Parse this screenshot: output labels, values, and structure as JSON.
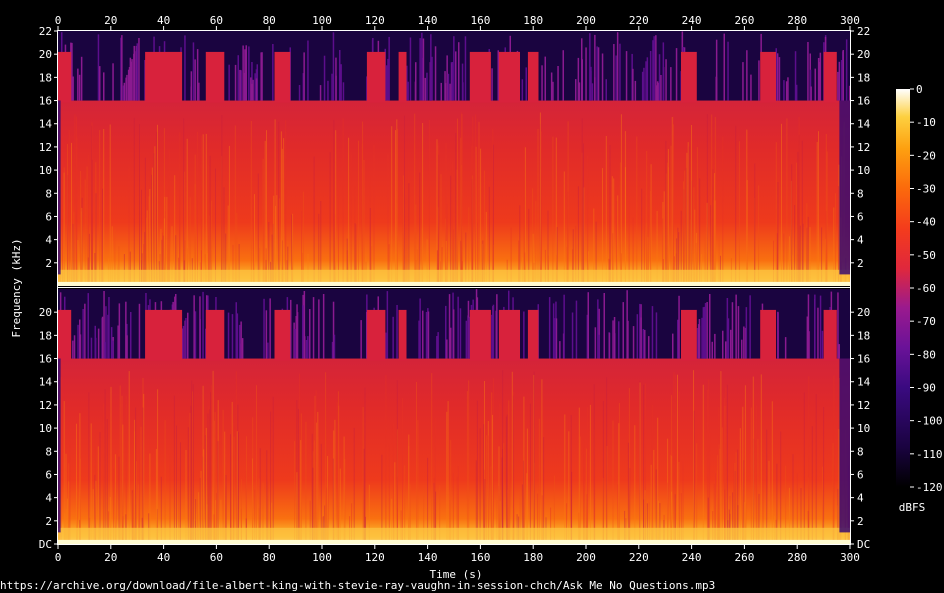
{
  "chart_data": {
    "type": "heatmap",
    "subtype": "spectrogram",
    "channels": 2,
    "xlabel": "Time (s)",
    "ylabel": "Frequency (kHz)",
    "colorbar_label": "dBFS",
    "source_url": "https://archive.org/download/file-albert-king-with-stevie-ray-vaughn-in-session-chch/Ask Me No Questions.mp3",
    "x_ticks": [
      0,
      20,
      40,
      60,
      80,
      100,
      120,
      140,
      160,
      180,
      200,
      220,
      240,
      260,
      280,
      300
    ],
    "xlim": [
      0,
      300
    ],
    "y_ticks_top_panel": [
      "2",
      "4",
      "6",
      "8",
      "10",
      "12",
      "14",
      "16",
      "18",
      "20",
      "22"
    ],
    "y_ticks_bottom_panel": [
      "DC",
      "2",
      "4",
      "6",
      "8",
      "10",
      "12",
      "14",
      "16",
      "18",
      "20"
    ],
    "ylim_khz": [
      0,
      22
    ],
    "colorbar_ticks": [
      "0",
      "-10",
      "-20",
      "-30",
      "-40",
      "-50",
      "-60",
      "-70",
      "-80",
      "-90",
      "-100",
      "-110",
      "-120"
    ],
    "colorbar_range_dbfs": [
      -120,
      0
    ],
    "colormap": [
      "#000000",
      "#1a0340",
      "#3a0a80",
      "#6a1298",
      "#9a1a8e",
      "#c0206a",
      "#e0283c",
      "#f43c1c",
      "#fb6a0c",
      "#fda010",
      "#fdd040",
      "#fff4a0",
      "#ffffff"
    ],
    "lowpass_cutoff_khz": 16,
    "loud_sections_full_band_s": [
      [
        0,
        5
      ],
      [
        33,
        47
      ],
      [
        56,
        63
      ],
      [
        82,
        88
      ],
      [
        117,
        124
      ],
      [
        129,
        132
      ],
      [
        156,
        164
      ],
      [
        167,
        175
      ],
      [
        178,
        182
      ],
      [
        236,
        242
      ],
      [
        266,
        272
      ],
      [
        290,
        295
      ]
    ],
    "quiet_low_energy_sections_s": [
      [
        0,
        1
      ],
      [
        296,
        300
      ]
    ]
  }
}
